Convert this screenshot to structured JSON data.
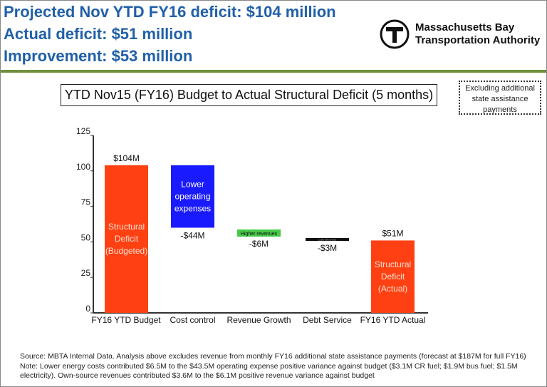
{
  "header": {
    "lines": [
      "Projected Nov YTD FY16 deficit: $104 million",
      "Actual deficit: $51 million",
      "Improvement: $53 million"
    ],
    "logo_text_1": "Massachusetts Bay",
    "logo_text_2": "Transportation Authority",
    "logo_mark": "T"
  },
  "note_box": {
    "line1": "Excluding additional",
    "line2": "state assistance",
    "line3": "payments"
  },
  "chart_data": {
    "type": "waterfall",
    "title": "YTD Nov15 (FY16) Budget to Actual Structural Deficit (5 months)",
    "categories": [
      "FY16 YTD Budget",
      "Cost control",
      "Revenue Growth",
      "Debt Service",
      "FY16 YTD Actual"
    ],
    "values": [
      104,
      -44,
      -6,
      -3,
      51
    ],
    "data_labels": [
      "$104M",
      "-$44M",
      "-$6M",
      "-$3M",
      "$51M"
    ],
    "bar_labels": [
      [
        "Structural",
        "Deficit",
        "(Budgeted)"
      ],
      [
        "Lower",
        "operating",
        "expenses"
      ],
      [
        "Higher revenues"
      ],
      [
        "Lower debt service"
      ],
      [
        "Structural",
        "Deficit",
        "(Actual)"
      ]
    ],
    "colors": [
      "#ff4013",
      "#1a1aff",
      "#47c94a",
      "#111111",
      "#ff4013"
    ],
    "yticks": [
      0,
      25,
      50,
      75,
      100,
      125
    ],
    "ylim": [
      0,
      125
    ],
    "grid": false
  },
  "footer": {
    "source": "Source:  MBTA Internal Data. Analysis above excludes revenue from monthly FY16 additional state assistance payments (forecast at $187M for full FY16)",
    "note": "Note:  Lower energy costs contributed $6.5M to the $43.5M operating expense positive variance against budget ($3.1M CR fuel; $1.9M bus fuel; $1.5M electricity). Own-source revenues contributed $3.6M to the $6.1M positive revenue variance against budget"
  }
}
